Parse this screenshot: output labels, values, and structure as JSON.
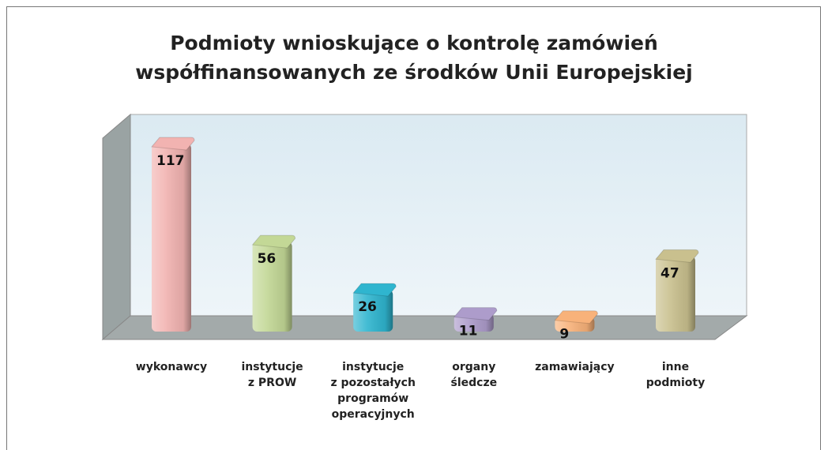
{
  "chart_data": {
    "type": "bar",
    "title": "Podmioty wnioskujące o kontrolę zamówień\nwspółfinansowanych ze środków Unii Europejskiej",
    "categories": [
      "wykonawcy",
      "instytucje\nz PROW",
      "instytucje\nz pozostałych\nprogramów\noperacyjnych",
      "organy\nśledcze",
      "zamawiający",
      "inne\npodmioty"
    ],
    "values": [
      117,
      56,
      26,
      11,
      9,
      47
    ],
    "colors": [
      "#f2b3b1",
      "#c3d896",
      "#2fb5cf",
      "#ad9ccb",
      "#f8b27a",
      "#c9c08e"
    ]
  }
}
